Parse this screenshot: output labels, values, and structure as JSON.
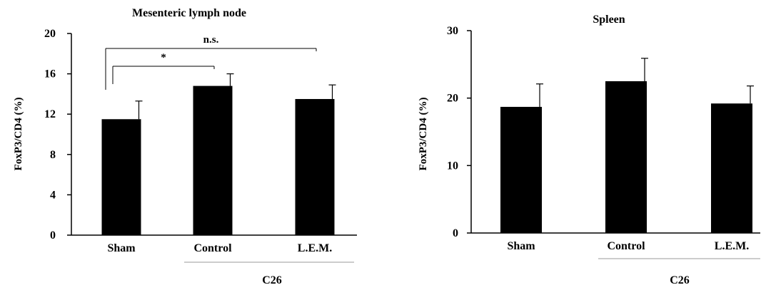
{
  "chart_data": [
    {
      "type": "bar",
      "title": "Mesenteric lymph node",
      "ylabel": "FoxP3/CD4 (%)",
      "xlabel": "",
      "categories": [
        "Sham",
        "Control",
        "L.E.M."
      ],
      "values": [
        11.5,
        14.8,
        13.5
      ],
      "errors": [
        1.8,
        1.2,
        1.4
      ],
      "ylim": [
        0,
        20
      ],
      "yticks": [
        "0",
        "4",
        "8",
        "12",
        "16",
        "20"
      ],
      "group_label": "C26",
      "significance": [
        {
          "label": "*",
          "from": "Sham",
          "to": "Control"
        },
        {
          "label": "n.s.",
          "from": "Sham",
          "to": "L.E.M."
        }
      ],
      "bar_color": "#000000",
      "grid": false
    },
    {
      "type": "bar",
      "title": "Spleen",
      "ylabel": "FoxP3/CD4 (%)",
      "xlabel": "",
      "categories": [
        "Sham",
        "Control",
        "L.E.M."
      ],
      "values": [
        18.7,
        22.5,
        19.2
      ],
      "errors": [
        3.4,
        3.4,
        2.6
      ],
      "ylim": [
        0,
        30
      ],
      "yticks": [
        "0",
        "10",
        "20",
        "30"
      ],
      "group_label": "C26",
      "bar_color": "#000000",
      "grid": false
    }
  ]
}
